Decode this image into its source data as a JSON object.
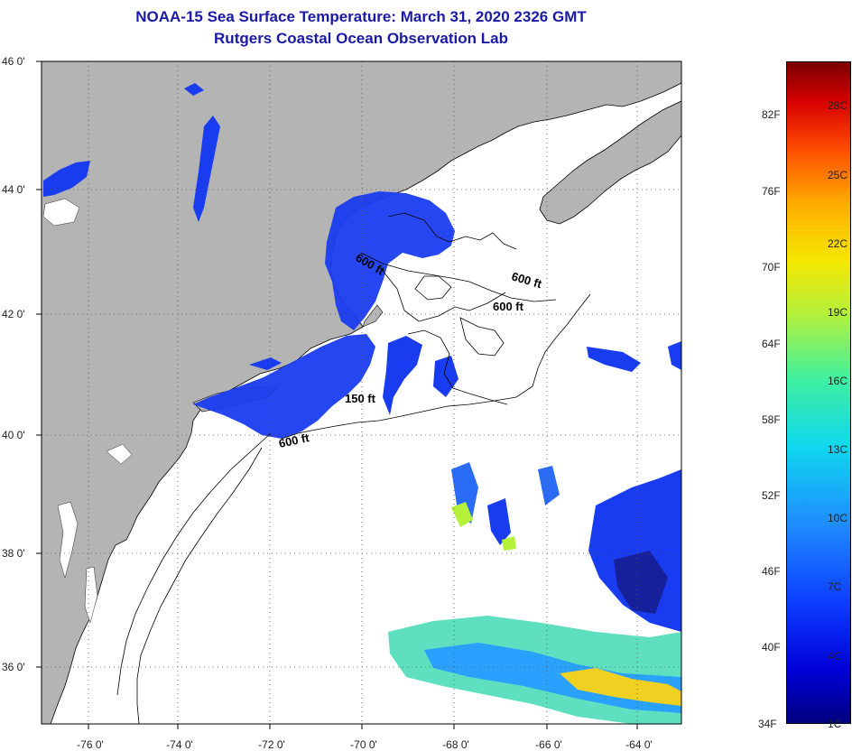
{
  "title": {
    "line1": "NOAA-15 Sea Surface Temperature:  March 31, 2020 2326 GMT",
    "line2": "Rutgers Coastal Ocean Observation Lab"
  },
  "axes": {
    "latitude_labels": [
      "46 0'",
      "44 0'",
      "42 0'",
      "40 0'",
      "38 0'",
      "36 0'"
    ],
    "longitude_labels": [
      "-76 0'",
      "-74 0'",
      "-72 0'",
      "-70 0'",
      "-68 0'",
      "-66 0'",
      "-64 0'"
    ]
  },
  "contours": [
    {
      "label": "600 ft"
    },
    {
      "label": "600 ft"
    },
    {
      "label": "600 ft"
    },
    {
      "label": "150 ft"
    },
    {
      "label": "600 ft"
    }
  ],
  "colorbar": {
    "fahrenheit": [
      "82F",
      "76F",
      "70F",
      "64F",
      "58F",
      "52F",
      "46F",
      "40F",
      "34F"
    ],
    "celsius": [
      "28C",
      "25C",
      "22C",
      "19C",
      "16C",
      "13C",
      "10C",
      "7C",
      "4C",
      "1C"
    ]
  },
  "colors": {
    "title": "#1a1aa6",
    "land": "#b4b4b4",
    "ocean_nodata": "#ffffff",
    "cold_sst": "#1a3cf0"
  }
}
